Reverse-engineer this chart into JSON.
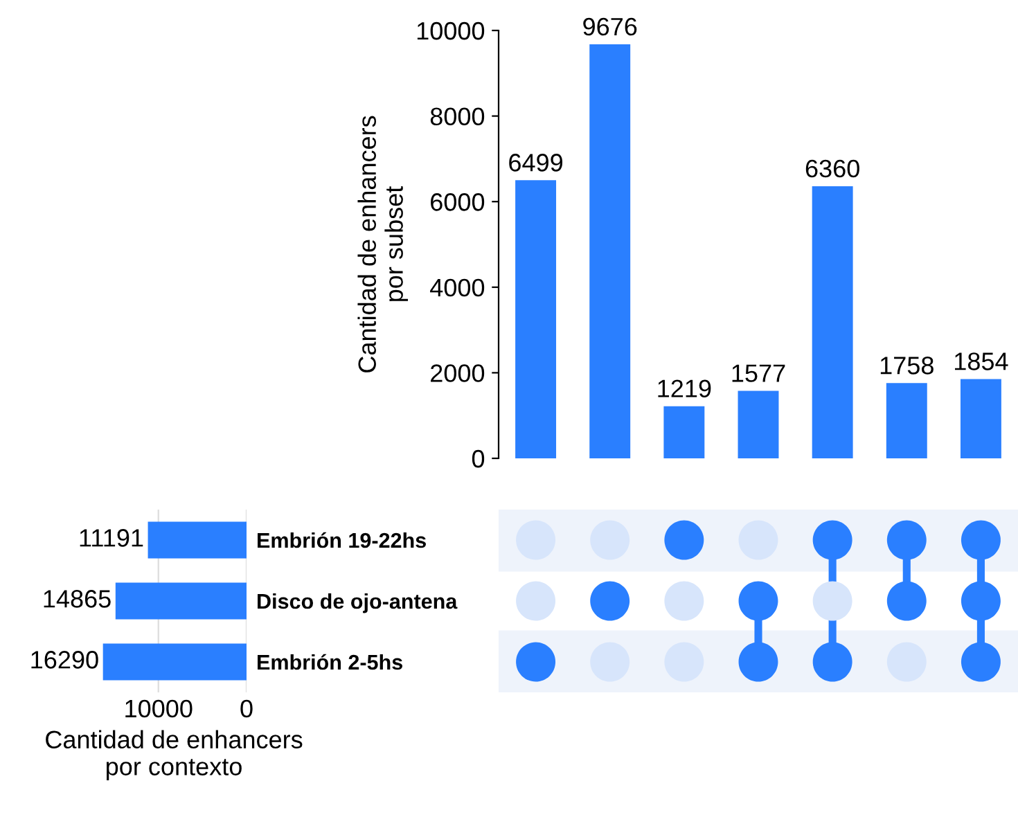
{
  "chart_data": [
    {
      "type": "bar",
      "categories": [
        null,
        null,
        null,
        null,
        null,
        null,
        null
      ],
      "values": [
        6499,
        9676,
        1219,
        1577,
        6360,
        1758,
        1854
      ],
      "color": "#2a7fff",
      "ylabel": "Cantidad de enhancers\npor subset",
      "ylim": [
        0,
        10000
      ],
      "yticks": [
        0,
        2000,
        4000,
        6000,
        8000,
        10000
      ],
      "data_labels": true,
      "grid": false,
      "legend": false
    },
    {
      "type": "bar",
      "orientation": "horizontal",
      "categories": [
        null,
        null,
        null
      ],
      "values": [
        11191,
        14865,
        16290
      ],
      "color": "#2a7fff",
      "xlabel": "Cantidad de enhancers\npor contexto",
      "xlim": [
        16500,
        0
      ],
      "xticks": [
        10000,
        0
      ],
      "data_labels": true,
      "grid": "x",
      "legend": false
    },
    {
      "type": "other",
      "y_categories": [
        "Embrión 19-22hs",
        "Disco de ojo-antena",
        "Embrión 2-5hs"
      ],
      "color": "#2a7fff"
    }
  ]
}
